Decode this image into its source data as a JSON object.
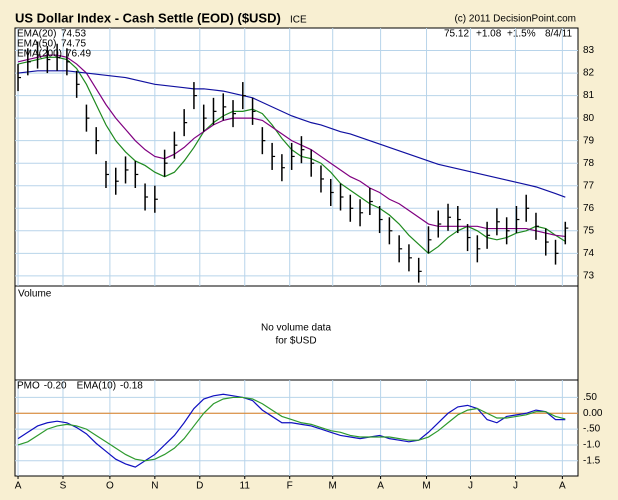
{
  "chart_data": [
    {
      "type": "ohlc",
      "title": "US Dollar Index - Cash Settle (EOD) ($USD)",
      "exchange": "ICE",
      "copyright": "(c) 2011 DecisionPoint.com",
      "quote": {
        "last": "75.12",
        "change": "+1.08",
        "pct": "+1.5%",
        "date": "8/4/11"
      },
      "x": [
        0,
        1,
        2,
        3,
        4,
        5,
        6,
        7,
        8,
        9,
        10,
        11,
        12,
        13,
        14,
        15,
        16,
        17,
        18,
        19,
        20,
        21,
        22,
        23,
        24,
        25,
        26,
        27,
        28,
        29,
        30,
        31,
        32,
        33,
        34,
        35,
        36,
        37,
        38,
        39,
        40,
        41,
        42,
        43,
        44,
        45,
        46,
        47,
        48,
        49,
        50,
        51,
        52,
        53,
        54,
        55,
        56
      ],
      "high": [
        82.4,
        83.1,
        83.4,
        83.2,
        83.3,
        83.1,
        82.1,
        80.6,
        79.6,
        78.1,
        77.8,
        78.3,
        78.1,
        77.1,
        77,
        78.6,
        79.4,
        80.4,
        81.6,
        80.6,
        80.9,
        81.1,
        80.8,
        81.6,
        80.9,
        79.6,
        78.9,
        78.4,
        78.9,
        79.2,
        78.6,
        77.9,
        77.3,
        77.1,
        76.6,
        76.4,
        76.9,
        76.1,
        75.6,
        74.8,
        74.4,
        73.8,
        75.2,
        75.9,
        76.2,
        76.1,
        75.3,
        74.8,
        75.4,
        76,
        75.6,
        76.1,
        76.6,
        75.8,
        75.1,
        74.6,
        75.4
      ],
      "low": [
        81.2,
        81.9,
        82.2,
        82,
        82.1,
        81.9,
        80.9,
        79.4,
        78.4,
        76.9,
        76.6,
        77.1,
        76.9,
        75.9,
        75.8,
        77.4,
        78.2,
        79.2,
        80.4,
        79.4,
        79.7,
        79.9,
        79.6,
        80.4,
        79.7,
        78.4,
        77.7,
        77.2,
        77.7,
        78,
        77.4,
        76.7,
        76.1,
        75.9,
        75.4,
        75.2,
        75.7,
        74.9,
        74.4,
        73.6,
        73.2,
        72.7,
        74,
        74.7,
        75,
        74.9,
        74.1,
        73.6,
        74.2,
        74.8,
        74.4,
        74.9,
        75.4,
        74.6,
        73.9,
        73.5,
        74.4
      ],
      "close": [
        81.8,
        82.5,
        82.8,
        82.6,
        82.7,
        82.5,
        81.5,
        80,
        79,
        77.5,
        77.2,
        77.7,
        77.5,
        76.5,
        76.4,
        78,
        78.8,
        79.8,
        81,
        80,
        80.3,
        80.5,
        80.2,
        81,
        80.3,
        79,
        78.3,
        77.8,
        78.3,
        78.6,
        78,
        77.3,
        76.7,
        76.5,
        76,
        75.8,
        76.3,
        75.5,
        75,
        74.2,
        73.8,
        73.2,
        74.6,
        75.3,
        75.6,
        75.5,
        74.7,
        74.2,
        74.8,
        75.4,
        75,
        75.5,
        76,
        75.2,
        74.5,
        74.0,
        75.12
      ],
      "color": "#000000",
      "series": [
        {
          "name": "EMA(20)",
          "color": "#1f8a1f",
          "values": [
            82.4,
            82.5,
            82.6,
            82.7,
            82.7,
            82.6,
            82.2,
            81.5,
            80.6,
            79.7,
            79.0,
            78.5,
            78.1,
            77.9,
            77.6,
            77.4,
            77.6,
            78.1,
            78.7,
            79.4,
            79.8,
            80.1,
            80.3,
            80.3,
            80.4,
            80.2,
            79.7,
            79.1,
            78.6,
            78.3,
            78.2,
            78.0,
            77.6,
            77.1,
            76.8,
            76.5,
            76.2,
            76.0,
            75.7,
            75.3,
            74.8,
            74.4,
            74.0,
            74.3,
            74.7,
            75.0,
            75.2,
            75.0,
            74.7,
            74.6,
            74.7,
            74.9,
            75.0,
            75.2,
            75.1,
            74.8,
            74.53
          ]
        },
        {
          "name": "EMA(50)",
          "color": "#800080",
          "values": [
            82.5,
            82.6,
            82.7,
            82.8,
            82.8,
            82.7,
            82.4,
            82.0,
            81.3,
            80.6,
            80.0,
            79.5,
            79.0,
            78.6,
            78.3,
            78.2,
            78.4,
            78.7,
            79.1,
            79.4,
            79.7,
            79.9,
            80.0,
            80.0,
            80.0,
            79.9,
            79.6,
            79.3,
            79.0,
            78.8,
            78.6,
            78.3,
            78.0,
            77.7,
            77.4,
            77.2,
            76.9,
            76.7,
            76.4,
            76.2,
            75.9,
            75.6,
            75.3,
            75.2,
            75.2,
            75.2,
            75.2,
            75.2,
            75.1,
            75.1,
            75.1,
            75.1,
            75.1,
            75.0,
            74.9,
            74.8,
            74.75
          ]
        },
        {
          "name": "EMA(200)",
          "color": "#1010a0",
          "values": [
            82.0,
            82.05,
            82.1,
            82.1,
            82.1,
            82.1,
            82.05,
            82.0,
            81.95,
            81.9,
            81.85,
            81.8,
            81.7,
            81.6,
            81.5,
            81.45,
            81.4,
            81.35,
            81.3,
            81.3,
            81.25,
            81.2,
            81.1,
            81.0,
            80.9,
            80.7,
            80.5,
            80.3,
            80.1,
            79.95,
            79.8,
            79.7,
            79.55,
            79.4,
            79.3,
            79.15,
            79.0,
            78.85,
            78.7,
            78.55,
            78.4,
            78.25,
            78.1,
            77.95,
            77.85,
            77.75,
            77.65,
            77.55,
            77.45,
            77.35,
            77.25,
            77.15,
            77.05,
            76.95,
            76.8,
            76.65,
            76.49
          ]
        }
      ],
      "xlim": [
        -0.31,
        57.3
      ],
      "ylim": [
        72.55,
        84.0
      ],
      "yticks": [
        73,
        74,
        75,
        76,
        77,
        78,
        79,
        80,
        81,
        82,
        83
      ],
      "grid": true
    },
    {
      "type": "empty",
      "title": "Volume",
      "note": [
        "No volume data",
        "for $USD"
      ]
    },
    {
      "type": "line",
      "x": [
        0,
        1,
        2,
        3,
        4,
        5,
        6,
        7,
        8,
        9,
        10,
        11,
        12,
        13,
        14,
        15,
        16,
        17,
        18,
        19,
        20,
        21,
        22,
        23,
        24,
        25,
        26,
        27,
        28,
        29,
        30,
        31,
        32,
        33,
        34,
        35,
        36,
        37,
        38,
        39,
        40,
        41,
        42,
        43,
        44,
        45,
        46,
        47,
        48,
        49,
        50,
        51,
        52,
        53,
        54,
        55,
        56
      ],
      "series": [
        {
          "name": "PMO",
          "last_label": "-0.20",
          "color": "#1010c0",
          "values": [
            -0.8,
            -0.6,
            -0.4,
            -0.3,
            -0.25,
            -0.3,
            -0.45,
            -0.65,
            -0.95,
            -1.2,
            -1.45,
            -1.6,
            -1.7,
            -1.5,
            -1.3,
            -1.0,
            -0.7,
            -0.3,
            0.15,
            0.45,
            0.55,
            0.6,
            0.55,
            0.5,
            0.4,
            0.1,
            -0.1,
            -0.3,
            -0.3,
            -0.35,
            -0.4,
            -0.5,
            -0.6,
            -0.7,
            -0.75,
            -0.8,
            -0.75,
            -0.7,
            -0.8,
            -0.85,
            -0.9,
            -0.85,
            -0.6,
            -0.3,
            0.0,
            0.2,
            0.25,
            0.15,
            -0.2,
            -0.3,
            -0.1,
            -0.05,
            0.0,
            0.1,
            0.05,
            -0.2,
            -0.2
          ]
        },
        {
          "name": "EMA(10)",
          "last_label": "-0.18",
          "color": "#2e9a2e",
          "values": [
            -1.0,
            -0.9,
            -0.7,
            -0.5,
            -0.4,
            -0.35,
            -0.4,
            -0.5,
            -0.7,
            -0.9,
            -1.1,
            -1.3,
            -1.45,
            -1.5,
            -1.45,
            -1.3,
            -1.1,
            -0.8,
            -0.4,
            0.0,
            0.3,
            0.45,
            0.5,
            0.5,
            0.45,
            0.3,
            0.1,
            -0.1,
            -0.2,
            -0.3,
            -0.35,
            -0.45,
            -0.55,
            -0.6,
            -0.7,
            -0.75,
            -0.75,
            -0.75,
            -0.75,
            -0.8,
            -0.85,
            -0.85,
            -0.75,
            -0.55,
            -0.3,
            -0.05,
            0.1,
            0.15,
            0.0,
            -0.15,
            -0.15,
            -0.1,
            -0.05,
            0.05,
            0.05,
            -0.1,
            -0.18
          ]
        }
      ],
      "zero_line_color": "#e08020",
      "xlim": [
        -0.31,
        57.3
      ],
      "ylim": [
        -1.98,
        1.05
      ],
      "yticks": [
        {
          "value": 0.5,
          "label": ".50"
        },
        {
          "value": 0,
          "label": "0.00"
        },
        {
          "value": -0.5,
          "label": "-.50"
        },
        {
          "value": -1.0,
          "label": "-1.0"
        },
        {
          "value": -1.5,
          "label": "-1.5"
        }
      ],
      "xticks": [
        {
          "value": 0,
          "label": "A"
        },
        {
          "value": 4.6,
          "label": "S"
        },
        {
          "value": 9.4,
          "label": "O"
        },
        {
          "value": 14,
          "label": "N"
        },
        {
          "value": 18.6,
          "label": "D"
        },
        {
          "value": 23.2,
          "label": "11"
        },
        {
          "value": 27.8,
          "label": "F"
        },
        {
          "value": 32.2,
          "label": "M"
        },
        {
          "value": 37.1,
          "label": "A"
        },
        {
          "value": 41.8,
          "label": "M"
        },
        {
          "value": 46.3,
          "label": "J"
        },
        {
          "value": 50.9,
          "label": "J"
        },
        {
          "value": 55.7,
          "label": "A"
        }
      ],
      "grid": true
    }
  ]
}
